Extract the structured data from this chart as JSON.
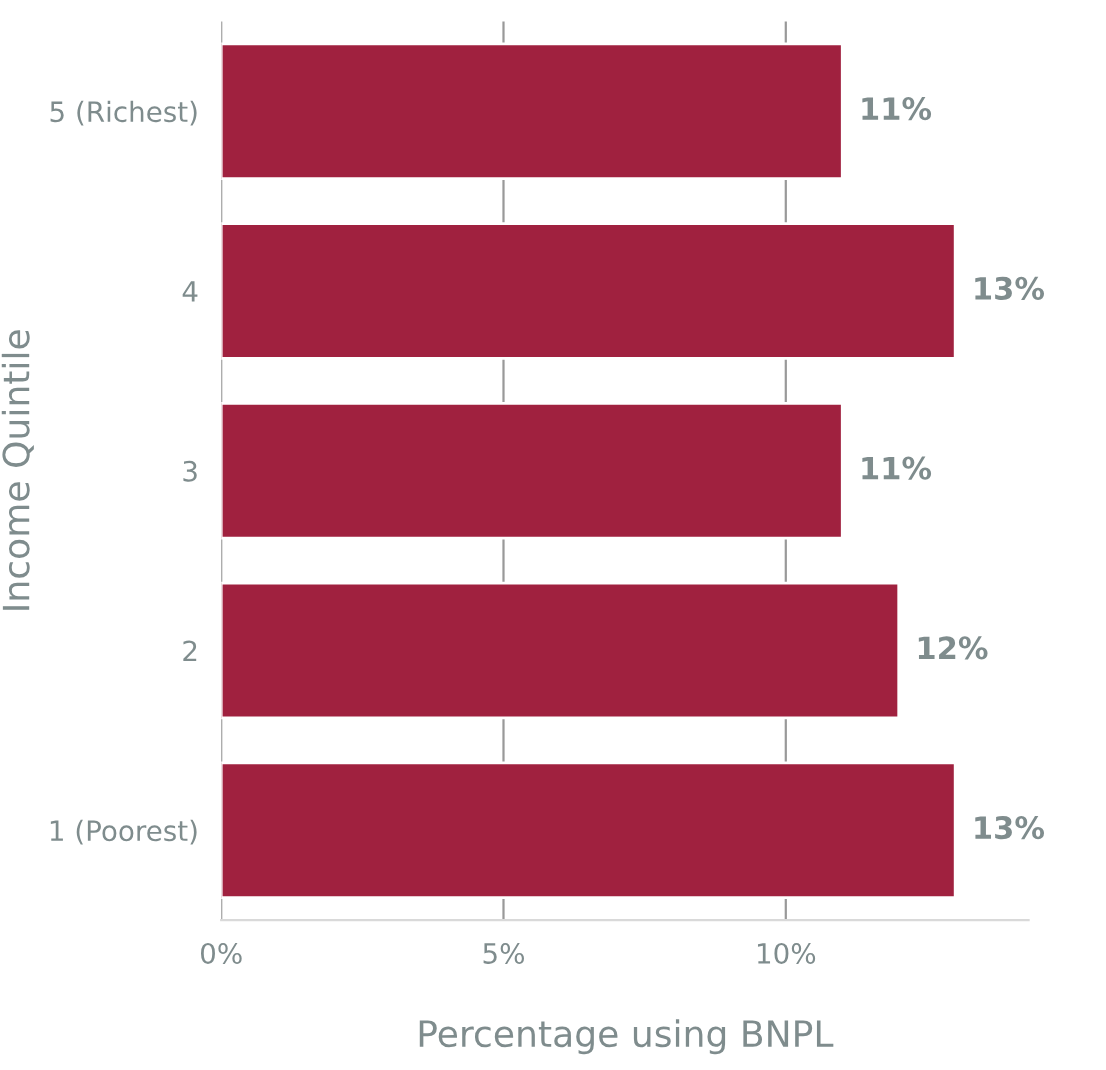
{
  "chart_data": {
    "type": "bar",
    "orientation": "horizontal",
    "xlabel": "Percentage using BNPL",
    "ylabel": "Income Quintile",
    "categories": [
      "5 (Richest)",
      "4",
      "3",
      "2",
      "1 (Poorest)"
    ],
    "values": [
      11,
      13,
      11,
      12,
      13
    ],
    "color": "#a0213f",
    "value_labels": [
      "11%",
      "13%",
      "11%",
      "12%",
      "13%"
    ],
    "xlim": [
      0,
      14.3
    ],
    "xticks": [
      {
        "value": 0,
        "label": "0%"
      },
      {
        "value": 5,
        "label": "5%"
      },
      {
        "value": 10,
        "label": "10%"
      }
    ],
    "grid": "x"
  }
}
